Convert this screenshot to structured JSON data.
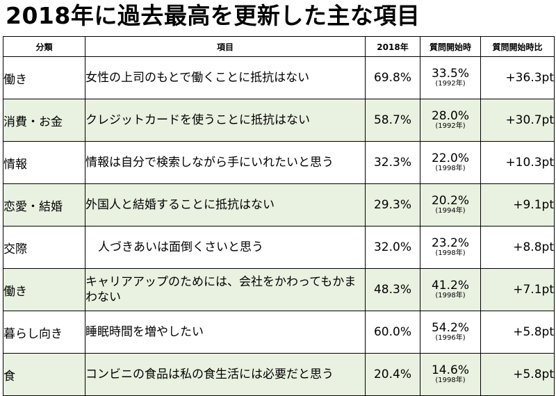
{
  "title": "2018年に過去最高を更新した主な項目",
  "table": {
    "headers": {
      "category": "分類",
      "item": "項目",
      "year2018": "2018年",
      "first_year": "質問開始時",
      "diff": "質問開始時比"
    },
    "rows": [
      {
        "category": "働き",
        "item": "女性の上司のもとで働くことに抵抗はない",
        "v2018": "69.8%",
        "first": "33.5%",
        "first_year": "(1992年)",
        "diff": "+36.3pt"
      },
      {
        "category": "消費・お金",
        "item": "クレジットカードを使うことに抵抗はない",
        "v2018": "58.7%",
        "first": "28.0%",
        "first_year": "(1992年)",
        "diff": "+30.7pt"
      },
      {
        "category": "情報",
        "item": "情報は自分で検索しながら手にいれたいと思う",
        "v2018": "32.3%",
        "first": "22.0%",
        "first_year": "(1998年)",
        "diff": "+10.3pt"
      },
      {
        "category": "恋愛・結婚",
        "item": "外国人と結婚することに抵抗はない",
        "v2018": "29.3%",
        "first": "20.2%",
        "first_year": "(1994年)",
        "diff": "+9.1pt"
      },
      {
        "category": "交際",
        "item": "人づきあいは面倒くさいと思う",
        "v2018": "32.0%",
        "first": "23.2%",
        "first_year": "(1998年)",
        "diff": "+8.8pt"
      },
      {
        "category": "働き",
        "item": "キャリアアップのためには、会社をかわってもかまわない",
        "v2018": "48.3%",
        "first": "41.2%",
        "first_year": "(1998年)",
        "diff": "+7.1pt"
      },
      {
        "category": "暮らし向き",
        "item": "睡眠時間を増やしたい",
        "v2018": "60.0%",
        "first": "54.2%",
        "first_year": "(1996年)",
        "diff": "+5.8pt"
      },
      {
        "category": "食",
        "item": "コンビニの食品は私の食生活には必要だと思う",
        "v2018": "20.4%",
        "first": "14.6%",
        "first_year": "(1998年)",
        "diff": "+5.8pt"
      }
    ]
  }
}
